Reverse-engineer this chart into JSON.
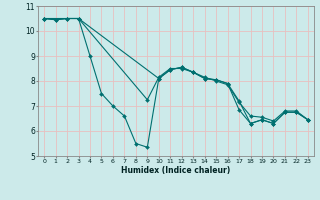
{
  "xlabel": "Humidex (Indice chaleur)",
  "xlim": [
    -0.5,
    23.5
  ],
  "ylim": [
    5,
    11
  ],
  "yticks": [
    5,
    6,
    7,
    8,
    9,
    10,
    11
  ],
  "xticks": [
    0,
    1,
    2,
    3,
    4,
    5,
    6,
    7,
    8,
    9,
    10,
    11,
    12,
    13,
    14,
    15,
    16,
    17,
    18,
    19,
    20,
    21,
    22,
    23
  ],
  "bg_color": "#cceaea",
  "grid_color": "#e8c0c0",
  "line_color": "#007070",
  "lines": [
    {
      "x": [
        0,
        1,
        2,
        3,
        4,
        5,
        6,
        7,
        8,
        9,
        10,
        11,
        12,
        13,
        14,
        15,
        16,
        17,
        18,
        19,
        20,
        21,
        22,
        23
      ],
      "y": [
        10.5,
        10.45,
        10.5,
        10.5,
        9.0,
        7.5,
        7.0,
        6.6,
        5.5,
        5.35,
        8.1,
        8.45,
        8.55,
        8.35,
        8.1,
        8.05,
        7.9,
        6.85,
        6.3,
        6.45,
        6.3,
        6.75,
        6.75,
        6.45
      ]
    },
    {
      "x": [
        0,
        1,
        2,
        3,
        10,
        11,
        12,
        13,
        14,
        15,
        16,
        17,
        18,
        19,
        20,
        21,
        22,
        23
      ],
      "y": [
        10.5,
        10.45,
        10.5,
        10.5,
        8.1,
        8.45,
        8.55,
        8.35,
        8.1,
        8.05,
        7.9,
        7.2,
        6.3,
        6.45,
        6.3,
        6.75,
        6.75,
        6.45
      ]
    },
    {
      "x": [
        0,
        3,
        9,
        10,
        11,
        12,
        13,
        14,
        15,
        16,
        17,
        18,
        19,
        20,
        21,
        22,
        23
      ],
      "y": [
        10.5,
        10.5,
        7.25,
        8.15,
        8.5,
        8.5,
        8.35,
        8.15,
        8.0,
        7.85,
        7.15,
        6.6,
        6.55,
        6.4,
        6.8,
        6.8,
        6.45
      ]
    }
  ]
}
